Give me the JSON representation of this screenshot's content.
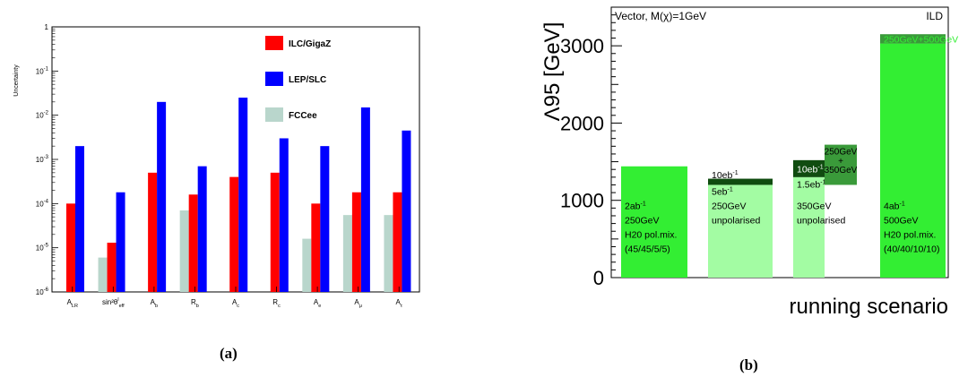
{
  "chart_data": [
    {
      "type": "bar",
      "panel_caption": "(a)",
      "ylabel": "Uncertainty",
      "yscale": "log",
      "ylim": [
        1e-06,
        1
      ],
      "ytick_values": [
        1,
        0.1,
        0.01,
        0.001,
        0.0001,
        1e-05,
        1e-06
      ],
      "ytick_labels": [
        {
          "base": "1",
          "exp": ""
        },
        {
          "base": "10",
          "exp": "-1"
        },
        {
          "base": "10",
          "exp": "-2"
        },
        {
          "base": "10",
          "exp": "-3"
        },
        {
          "base": "10",
          "exp": "-4"
        },
        {
          "base": "10",
          "exp": "-5"
        },
        {
          "base": "10",
          "exp": "-6"
        }
      ],
      "categories": [
        {
          "main": "A",
          "sub": "LR",
          "sup": ""
        },
        {
          "main": "sin²θ",
          "sub": "eff",
          "sup": "l"
        },
        {
          "main": "A",
          "sub": "b",
          "sup": ""
        },
        {
          "main": "R",
          "sub": "b",
          "sup": ""
        },
        {
          "main": "A",
          "sub": "c",
          "sup": ""
        },
        {
          "main": "R",
          "sub": "c",
          "sup": ""
        },
        {
          "main": "A",
          "sub": "e",
          "sup": ""
        },
        {
          "main": "A",
          "sub": "μ",
          "sup": ""
        },
        {
          "main": "A",
          "sub": "τ",
          "sup": ""
        }
      ],
      "series": [
        {
          "name": "FCCee",
          "color": "#b9d6cc",
          "values": [
            null,
            6e-06,
            null,
            7e-05,
            null,
            null,
            1.6e-05,
            5.5e-05,
            5.5e-05
          ]
        },
        {
          "name": "ILC/GigaZ",
          "color": "#ff0000",
          "values": [
            0.0001,
            1.3e-05,
            0.0005,
            0.00016,
            0.0004,
            0.0005,
            0.0001,
            0.00018,
            0.00018
          ]
        },
        {
          "name": "LEP/SLC",
          "color": "#0000ff",
          "values": [
            0.002,
            0.00018,
            0.02,
            0.0007,
            0.025,
            0.003,
            0.002,
            0.015,
            0.0045
          ]
        }
      ],
      "legend_order": [
        "ILC/GigaZ",
        "LEP/SLC",
        "FCCee"
      ],
      "legend_position": "top-right"
    },
    {
      "type": "bar",
      "panel_caption": "(b)",
      "title_left": "Vector, M(χ)=1GeV",
      "title_right": "ILD",
      "ylabel": "Λ95 [GeV]",
      "xlabel": "running scenario",
      "ylim": [
        0,
        3500
      ],
      "yticks": [
        0,
        1000,
        2000,
        3000
      ],
      "bars": [
        {
          "name": "bar-2ab-250-h20",
          "segments": [
            {
              "from": 0,
              "to": 1440,
              "color": "#33ee33"
            }
          ],
          "labels": [
            {
              "lines": [
                "2ab",
                "250GeV",
                "H20 pol.mix.",
                "(45/45/5/5)"
              ],
              "sup": "-1"
            }
          ],
          "top_labels": []
        },
        {
          "name": "bar-10ab-250-unpol",
          "segments": [
            {
              "from": 0,
              "to": 1200,
              "color": "#a3fca3"
            },
            {
              "from": 1200,
              "to": 1280,
              "color": "#104c10"
            }
          ],
          "labels": [
            {
              "lines": [
                "250GeV",
                "unpolarised"
              ]
            }
          ],
          "top_labels": [
            {
              "text": "10eb",
              "sup": "-1",
              "value": 1330
            },
            {
              "text": "5eb",
              "sup": "-1",
              "value": 1120
            }
          ]
        },
        {
          "name": "bar-350-unpol",
          "segments": [
            {
              "from": 0,
              "to": 1300,
              "color": "#a3fca3"
            },
            {
              "from": 1300,
              "to": 1520,
              "color": "#104c10"
            }
          ],
          "labels": [
            {
              "lines": [
                "350GeV",
                "unpolarised"
              ]
            }
          ],
          "top_labels": [
            {
              "text": "10eb",
              "sup": "-1",
              "value": 1410
            },
            {
              "text": "1.5eb",
              "sup": "-1",
              "value": 1210
            }
          ]
        },
        {
          "name": "bar-250-plus-350",
          "segments": [
            {
              "from": 1200,
              "to": 1720,
              "color": "#3a9a3a"
            }
          ],
          "labels": [],
          "top_labels": [
            {
              "text": "250GeV",
              "value": 1640
            },
            {
              "text": "+",
              "value": 1520
            },
            {
              "text": "350GeV",
              "value": 1400
            }
          ]
        },
        {
          "name": "bar-4ab-500-h20",
          "segments": [
            {
              "from": 0,
              "to": 3030,
              "color": "#33ee33"
            },
            {
              "from": 3030,
              "to": 3150,
              "color": "#3a9a3a"
            }
          ],
          "labels": [
            {
              "lines": [
                "4ab",
                "500GeV",
                "H20 pol.mix.",
                "(40/40/10/10)"
              ],
              "sup": "-1"
            }
          ],
          "top_labels": [
            {
              "text": "250GeV+500GeV",
              "value": 3090,
              "color": "#33ee33"
            }
          ]
        }
      ]
    }
  ]
}
